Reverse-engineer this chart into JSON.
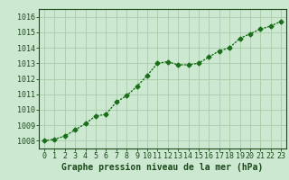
{
  "x": [
    0,
    1,
    2,
    3,
    4,
    5,
    6,
    7,
    8,
    9,
    10,
    11,
    12,
    13,
    14,
    15,
    16,
    17,
    18,
    19,
    20,
    21,
    22,
    23
  ],
  "y": [
    1008.0,
    1008.1,
    1008.3,
    1008.7,
    1009.1,
    1009.6,
    1009.7,
    1010.5,
    1010.9,
    1011.5,
    1012.2,
    1013.0,
    1013.1,
    1012.9,
    1012.9,
    1013.0,
    1013.4,
    1013.8,
    1014.0,
    1014.6,
    1014.9,
    1015.2,
    1015.4,
    1015.7
  ],
  "ylim": [
    1007.5,
    1016.5
  ],
  "yticks": [
    1008,
    1009,
    1010,
    1011,
    1012,
    1013,
    1014,
    1015,
    1016
  ],
  "xlim": [
    -0.5,
    23.5
  ],
  "xticks": [
    0,
    1,
    2,
    3,
    4,
    5,
    6,
    7,
    8,
    9,
    10,
    11,
    12,
    13,
    14,
    15,
    16,
    17,
    18,
    19,
    20,
    21,
    22,
    23
  ],
  "xlabel": "Graphe pression niveau de la mer (hPa)",
  "line_color": "#1a6e1a",
  "marker": "D",
  "marker_size": 2.5,
  "line_width": 1.0,
  "bg_color": "#cce8d0",
  "grid_color": "#a8cca8",
  "text_color": "#1a4a1a",
  "xlabel_fontsize": 7,
  "tick_fontsize": 6
}
